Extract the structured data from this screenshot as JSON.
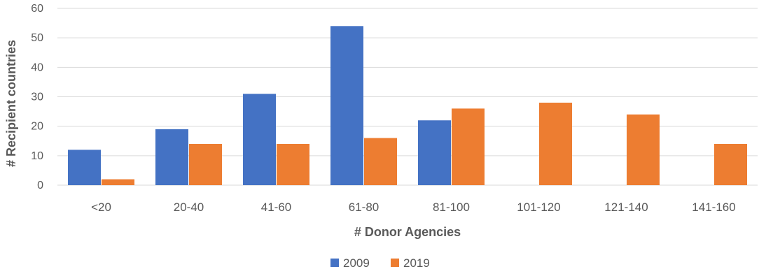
{
  "chart_data": {
    "type": "bar",
    "title": "",
    "xlabel": "# Donor Agencies",
    "ylabel": "# Recipient countries",
    "categories": [
      "<20",
      "20-40",
      "41-60",
      "61-80",
      "81-100",
      "101-120",
      "121-140",
      "141-160"
    ],
    "series": [
      {
        "name": "2009",
        "color": "#4472c4",
        "values": [
          12,
          19,
          31,
          54,
          22,
          0,
          0,
          0
        ]
      },
      {
        "name": "2019",
        "color": "#ed7d31",
        "values": [
          2,
          14,
          14,
          16,
          26,
          28,
          24,
          14
        ]
      }
    ],
    "ylim": [
      0,
      60
    ],
    "yticks": [
      0,
      10,
      20,
      30,
      40,
      50,
      60
    ],
    "grid": true,
    "legend_position": "bottom"
  }
}
